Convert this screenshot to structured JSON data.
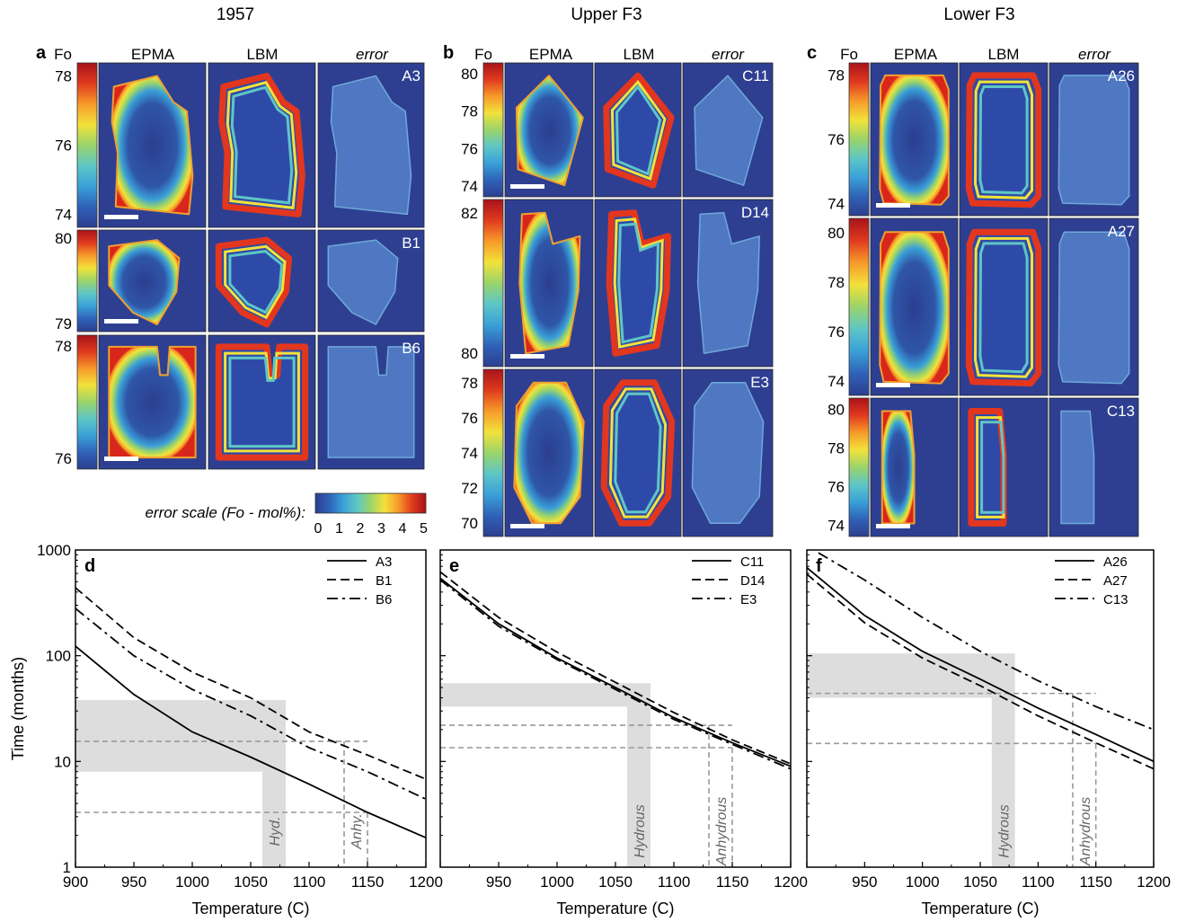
{
  "column_titles": [
    "1957",
    "Upper F3",
    "Lower F3"
  ],
  "panel_letters": [
    "a",
    "b",
    "c",
    "d",
    "e",
    "f"
  ],
  "map_headers": {
    "fo": "Fo",
    "epma": "EPMA",
    "lbm": "LBM",
    "error": "error"
  },
  "map_rows": [
    [
      {
        "sample": "A3",
        "ticks": [
          "78",
          "76",
          "74"
        ],
        "shape": "irregular"
      },
      {
        "sample": "B1",
        "ticks": [
          "80",
          "79"
        ],
        "shape": "small"
      },
      {
        "sample": "B6",
        "ticks": [
          "78",
          "76"
        ],
        "shape": "square-notch"
      }
    ],
    [
      {
        "sample": "C11",
        "ticks": [
          "80",
          "78",
          "76",
          "74"
        ],
        "shape": "diamond"
      },
      {
        "sample": "D14",
        "ticks": [
          "82",
          "80"
        ],
        "shape": "tall"
      },
      {
        "sample": "E3",
        "ticks": [
          "78",
          "76",
          "74",
          "72",
          "70"
        ],
        "shape": "hexagon"
      }
    ],
    [
      {
        "sample": "A26",
        "ticks": [
          "78",
          "76",
          "74"
        ],
        "shape": "rounded-rect"
      },
      {
        "sample": "A27",
        "ticks": [
          "80",
          "78",
          "76",
          "74"
        ],
        "shape": "rounded-rect"
      },
      {
        "sample": "C13",
        "ticks": [
          "80",
          "78",
          "76",
          "74"
        ],
        "shape": "narrow"
      }
    ]
  ],
  "error_scale": {
    "label": "error scale (Fo - mol%):",
    "ticks": [
      "0",
      "1",
      "2",
      "3",
      "4",
      "5"
    ]
  },
  "colormap": [
    "#2c3e8f",
    "#2f62b8",
    "#3aa0d8",
    "#5ec6c6",
    "#9ad46a",
    "#f2e23a",
    "#f79a2a",
    "#e03a1e",
    "#a8131a"
  ],
  "chart_data": [
    {
      "type": "line",
      "panel": "d",
      "xlabel": "Temperature (C)",
      "ylabel": "Time (months)",
      "xlim": [
        900,
        1200
      ],
      "ylim": [
        1,
        1000
      ],
      "y_scale": "log",
      "xticks": [
        "900",
        "950",
        "1000",
        "1050",
        "1100",
        "1150",
        "1200"
      ],
      "yticks": [
        "1",
        "10",
        "100",
        "1000"
      ],
      "legend_position": "top-right",
      "series": [
        {
          "name": "A3",
          "dash": "solid",
          "x": [
            900,
            950,
            1000,
            1050,
            1100,
            1150,
            1200
          ],
          "y": [
            123,
            43,
            19,
            11,
            6.1,
            3.3,
            1.9
          ]
        },
        {
          "name": "B1",
          "dash": "dashed",
          "x": [
            900,
            950,
            1000,
            1050,
            1100,
            1150,
            1200
          ],
          "y": [
            440,
            148,
            70,
            40,
            19,
            11.5,
            6.8
          ]
        },
        {
          "name": "B6",
          "dash": "dashdot",
          "x": [
            900,
            950,
            1000,
            1050,
            1100,
            1150,
            1200
          ],
          "y": [
            280,
            100,
            48,
            27,
            13.5,
            8,
            4.4
          ]
        }
      ],
      "bands": [
        {
          "label": "Hyd.",
          "x": [
            1060,
            1080
          ]
        },
        {
          "label": "Anhy.",
          "x": [
            1130,
            1150
          ]
        }
      ],
      "hbands": [
        {
          "y": [
            8,
            38
          ]
        }
      ],
      "reference_lines": {
        "x": [
          1130,
          1150
        ],
        "y": [
          15.5,
          3.3
        ]
      }
    },
    {
      "type": "line",
      "panel": "e",
      "xlabel": "Temperature (C)",
      "ylabel": "",
      "xlim": [
        900,
        1200
      ],
      "ylim": [
        1,
        1000
      ],
      "y_scale": "log",
      "xticks": [
        "950",
        "1000",
        "1050",
        "1100",
        "1150",
        "1200"
      ],
      "yticks": [],
      "legend_position": "top-right",
      "series": [
        {
          "name": "C11",
          "dash": "solid",
          "x": [
            900,
            950,
            1000,
            1050,
            1100,
            1150,
            1200
          ],
          "y": [
            540,
            200,
            95,
            50,
            26,
            15,
            9
          ]
        },
        {
          "name": "D14",
          "dash": "dashed",
          "x": [
            900,
            950,
            1000,
            1050,
            1100,
            1150,
            1200
          ],
          "y": [
            620,
            230,
            108,
            56,
            29,
            16,
            9.5
          ]
        },
        {
          "name": "E3",
          "dash": "dashdot",
          "x": [
            900,
            950,
            1000,
            1050,
            1100,
            1150,
            1200
          ],
          "y": [
            520,
            190,
            92,
            48,
            25,
            14.5,
            8.5
          ]
        }
      ],
      "bands": [
        {
          "label": "Hydrous",
          "x": [
            1060,
            1080
          ]
        },
        {
          "label": "Anhydrous",
          "x": [
            1130,
            1150
          ]
        }
      ],
      "hbands": [
        {
          "y": [
            33,
            55
          ]
        }
      ],
      "reference_lines": {
        "x": [
          1130,
          1150
        ],
        "y": [
          22,
          13.5
        ]
      }
    },
    {
      "type": "line",
      "panel": "f",
      "xlabel": "Temperature (C)",
      "ylabel": "",
      "xlim": [
        900,
        1200
      ],
      "ylim": [
        1,
        1000
      ],
      "y_scale": "log",
      "xticks": [
        "950",
        "1000",
        "1050",
        "1100",
        "1150",
        "1200"
      ],
      "yticks": [],
      "legend_position": "top-right",
      "series": [
        {
          "name": "A26",
          "dash": "solid",
          "x": [
            900,
            950,
            1000,
            1050,
            1100,
            1150,
            1200
          ],
          "y": [
            680,
            240,
            110,
            60,
            32,
            18,
            10
          ]
        },
        {
          "name": "A27",
          "dash": "dashed",
          "x": [
            900,
            950,
            1000,
            1050,
            1100,
            1150,
            1200
          ],
          "y": [
            590,
            205,
            95,
            52,
            27,
            15,
            8.5
          ]
        },
        {
          "name": "C13",
          "dash": "dashdot",
          "x": [
            910,
            950,
            1000,
            1050,
            1100,
            1150,
            1200
          ],
          "y": [
            940,
            520,
            230,
            110,
            58,
            33,
            20
          ]
        }
      ],
      "bands": [
        {
          "label": "Hydrous",
          "x": [
            1060,
            1080
          ]
        },
        {
          "label": "Anhydrous",
          "x": [
            1130,
            1150
          ]
        }
      ],
      "hbands": [
        {
          "y": [
            40,
            105
          ]
        }
      ],
      "reference_lines": {
        "x": [
          1130,
          1150
        ],
        "y": [
          44,
          14.8
        ]
      }
    }
  ]
}
